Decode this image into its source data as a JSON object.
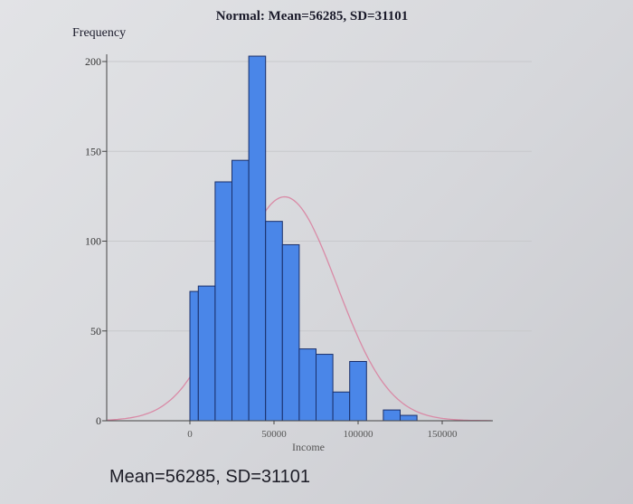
{
  "chart_data": {
    "type": "bar",
    "title": "Normal: Mean=56285, SD=31101",
    "ylabel": "Frequency",
    "xlabel": "Income",
    "caption": "Mean=56285, SD=31101",
    "mean": 56285,
    "sd": 31101,
    "bin_width": 10000,
    "bins": [
      {
        "start": 0,
        "end": 5000,
        "value": 72
      },
      {
        "start": 5000,
        "end": 15000,
        "value": 75
      },
      {
        "start": 15000,
        "end": 25000,
        "value": 133
      },
      {
        "start": 25000,
        "end": 35000,
        "value": 145
      },
      {
        "start": 35000,
        "end": 45000,
        "value": 203
      },
      {
        "start": 45000,
        "end": 55000,
        "value": 111
      },
      {
        "start": 55000,
        "end": 65000,
        "value": 98
      },
      {
        "start": 65000,
        "end": 75000,
        "value": 40
      },
      {
        "start": 75000,
        "end": 85000,
        "value": 37
      },
      {
        "start": 85000,
        "end": 95000,
        "value": 16
      },
      {
        "start": 95000,
        "end": 105000,
        "value": 33
      },
      {
        "start": 115000,
        "end": 125000,
        "value": 6
      },
      {
        "start": 125000,
        "end": 135000,
        "value": 3
      }
    ],
    "yticks": [
      0,
      50,
      100,
      150,
      200
    ],
    "xticks": [
      "0",
      "50000",
      "100000",
      "150000"
    ],
    "ylim": [
      0,
      210
    ],
    "grid": true,
    "colors": {
      "bar": "#4a86e8",
      "bar_edge": "#1a2f6a",
      "curve": "#d98aa6"
    }
  }
}
